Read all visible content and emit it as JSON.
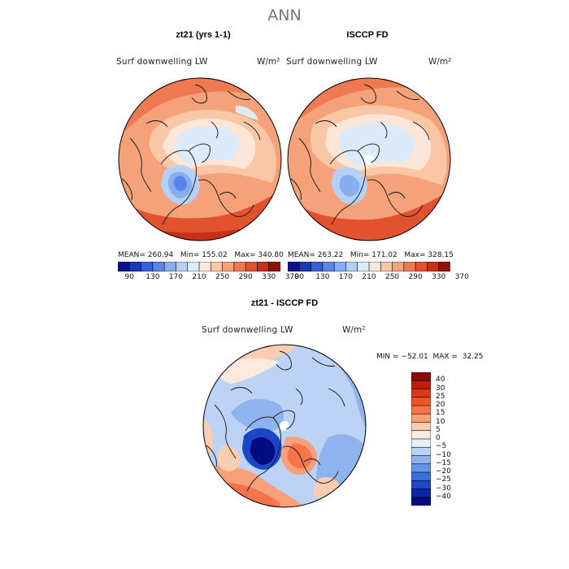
{
  "title": "ANN",
  "chart_data": [
    {
      "type": "heatmap",
      "projection": "north-polar-stereographic",
      "title": "zt21 (yrs 1-1)",
      "variable": "Surf downwelling LW",
      "units": "W/m²",
      "stats": {
        "mean_label": "MEAN=",
        "mean": "260.94",
        "min_label": "Min=",
        "min": "155.02",
        "max_label": "Max=",
        "max": "340.80"
      },
      "colorbar": {
        "orientation": "horizontal",
        "levels": [
          "90",
          "130",
          "170",
          "210",
          "250",
          "290",
          "330",
          "370"
        ],
        "colors": [
          "#08128c",
          "#1a3ab8",
          "#3a5fd6",
          "#5a84e8",
          "#86aef0",
          "#b4d0f6",
          "#dceaf9",
          "#fbe6d7",
          "#f9c6a6",
          "#f5a27a",
          "#ef7a52",
          "#e3522f",
          "#c72f18",
          "#8e1306"
        ]
      }
    },
    {
      "type": "heatmap",
      "projection": "north-polar-stereographic",
      "title": "ISCCP FD",
      "variable": "Surf downwelling LW",
      "units": "W/m²",
      "stats": {
        "mean_label": "MEAN=",
        "mean": "263.22",
        "min_label": "Min=",
        "min": "171.02",
        "max_label": "Max=",
        "max": "328.15"
      },
      "colorbar": {
        "orientation": "horizontal",
        "levels": [
          "90",
          "130",
          "170",
          "210",
          "250",
          "290",
          "330",
          "370"
        ],
        "colors": [
          "#08128c",
          "#1a3ab8",
          "#3a5fd6",
          "#5a84e8",
          "#86aef0",
          "#b4d0f6",
          "#dceaf9",
          "#fbe6d7",
          "#f9c6a6",
          "#f5a27a",
          "#ef7a52",
          "#e3522f",
          "#c72f18",
          "#8e1306"
        ]
      }
    },
    {
      "type": "heatmap",
      "projection": "north-polar-stereographic",
      "title": "zt21 - ISCCP FD",
      "variable": "Surf downwelling LW",
      "units": "W/m²",
      "stats": {
        "min_label": "MIN =",
        "min": "−52.01",
        "max_label": "MAX =",
        "max": "32.25"
      },
      "colorbar": {
        "orientation": "vertical",
        "levels": [
          "40",
          "30",
          "25",
          "20",
          "15",
          "10",
          "5",
          "0",
          "−5",
          "−10",
          "−15",
          "−20",
          "−25",
          "−30",
          "−40"
        ],
        "colors": [
          "#8b0a05",
          "#c31c0c",
          "#dd3718",
          "#ee5526",
          "#f6744a",
          "#f8a07a",
          "#fbcdb0",
          "#fdeade",
          "#e6effc",
          "#bcd3f5",
          "#8fb3ee",
          "#6593e6",
          "#3c6fdc",
          "#1b46c8",
          "#0a25a8",
          "#020c80"
        ]
      }
    }
  ]
}
